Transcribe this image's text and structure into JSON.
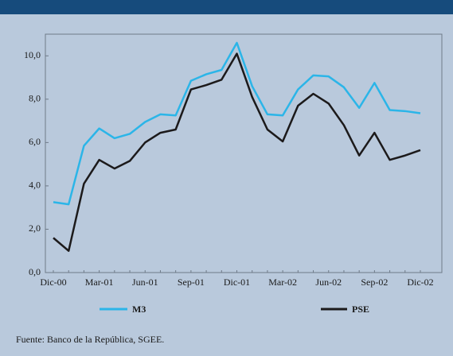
{
  "chart_data": {
    "type": "line",
    "categories": [
      "Dic-00",
      null,
      null,
      "Mar-01",
      null,
      null,
      "Jun-01",
      null,
      null,
      "Sep-01",
      null,
      null,
      "Dic-01",
      null,
      null,
      "Mar-02",
      null,
      null,
      "Jun-02",
      null,
      null,
      "Sep-02",
      null,
      null,
      "Dic-02"
    ],
    "series": [
      {
        "name": "M3",
        "color": "#2bb5e8",
        "values": [
          3.25,
          3.15,
          5.85,
          6.65,
          6.2,
          6.4,
          6.95,
          7.3,
          7.25,
          8.85,
          9.15,
          9.35,
          10.6,
          8.6,
          7.3,
          7.25,
          8.45,
          9.1,
          9.05,
          8.55,
          7.6,
          8.75,
          7.5,
          7.45,
          7.35
        ]
      },
      {
        "name": "PSE",
        "color": "#1c1a1b",
        "values": [
          1.6,
          1.0,
          4.1,
          5.2,
          4.8,
          5.15,
          6.0,
          6.45,
          6.6,
          8.45,
          8.65,
          8.9,
          10.1,
          8.1,
          6.6,
          6.05,
          7.7,
          8.25,
          7.8,
          6.8,
          5.4,
          6.45,
          5.2,
          5.4,
          5.65
        ]
      }
    ],
    "ylim": [
      0,
      11
    ],
    "yticks": [
      {
        "value": 0,
        "label": "0,0"
      },
      {
        "value": 2,
        "label": "2,0"
      },
      {
        "value": 4,
        "label": "4,0"
      },
      {
        "value": 6,
        "label": "6,0"
      },
      {
        "value": 8,
        "label": "8,0"
      },
      {
        "value": 10,
        "label": "10,0"
      }
    ],
    "source": "Fuente: Banco de la República, SGEE."
  }
}
